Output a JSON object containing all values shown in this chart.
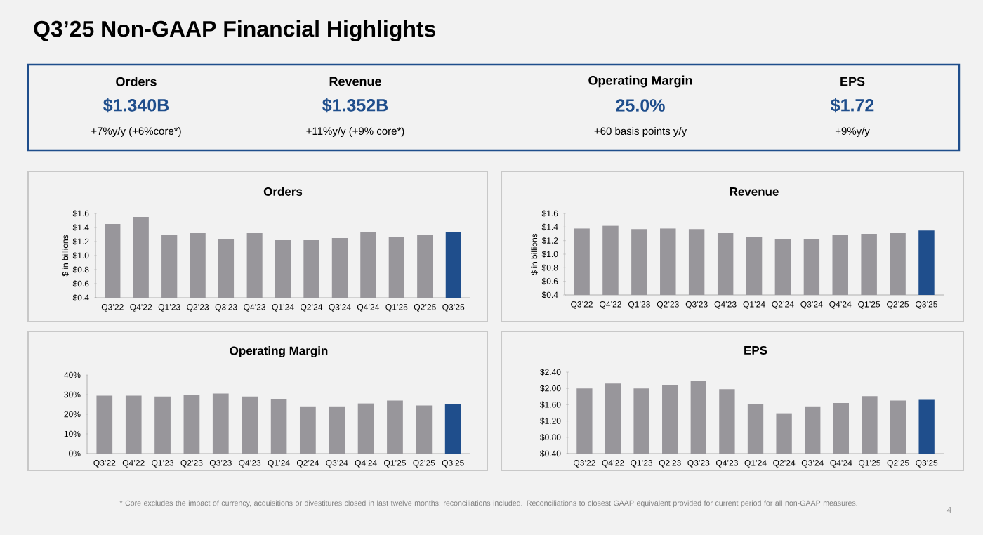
{
  "chart_data": [
    {
      "type": "other",
      "title": "Q3’25 Non-GAAP Financial Highlights",
      "annotations": [
        "Orders",
        "$1.340B",
        "+7%y/y (+6%core*)",
        "Revenue",
        "$1.352B",
        "+11%y/y (+9% core*)",
        "Operating Margin",
        "25.0%",
        "+60 basis points y/y",
        "EPS",
        "$1.72",
        "+9%y/y",
        "* Core excludes the impact of currency, acquisitions or divestitures closed in last twelve months; reconciliations included. Reconciliations to closest GAAP equivalent provided for current period for all non-GAAP measures.",
        "4"
      ]
    },
    {
      "type": "bar",
      "title": "Orders",
      "ylabel": "$ in billions",
      "categories": [
        "Q3’22",
        "Q4’22",
        "Q1’23",
        "Q2’23",
        "Q3’23",
        "Q4’23",
        "Q1’24",
        "Q2’24",
        "Q3’24",
        "Q4’24",
        "Q1’25",
        "Q2’25",
        "Q3’25"
      ],
      "values": [
        1.45,
        1.55,
        1.3,
        1.32,
        1.24,
        1.32,
        1.22,
        1.22,
        1.25,
        1.34,
        1.26,
        1.3,
        1.34
      ],
      "colors": [
        "#98969b",
        "#98969b",
        "#98969b",
        "#98969b",
        "#98969b",
        "#98969b",
        "#98969b",
        "#98969b",
        "#98969b",
        "#98969b",
        "#98969b",
        "#98969b",
        "#1f4e8c"
      ],
      "ylim": [
        0.4,
        1.6
      ],
      "yticks": [
        {
          "value": 0.4,
          "label": "$0.4"
        },
        {
          "value": 0.6,
          "label": "$0.6"
        },
        {
          "value": 0.8,
          "label": "$0.8"
        },
        {
          "value": 1.0,
          "label": "$1.0"
        },
        {
          "value": 1.2,
          "label": "$1.2"
        },
        {
          "value": 1.4,
          "label": "$1.4"
        },
        {
          "value": 1.6,
          "label": "$1.6"
        }
      ]
    },
    {
      "type": "bar",
      "title": "Revenue",
      "ylabel": "$ in billions",
      "categories": [
        "Q3’22",
        "Q4’22",
        "Q1’23",
        "Q2’23",
        "Q3’23",
        "Q4’23",
        "Q1’24",
        "Q2’24",
        "Q3’24",
        "Q4’24",
        "Q1’25",
        "Q2’25",
        "Q3’25"
      ],
      "values": [
        1.38,
        1.42,
        1.37,
        1.38,
        1.37,
        1.31,
        1.25,
        1.22,
        1.22,
        1.29,
        1.3,
        1.31,
        1.35
      ],
      "colors": [
        "#98969b",
        "#98969b",
        "#98969b",
        "#98969b",
        "#98969b",
        "#98969b",
        "#98969b",
        "#98969b",
        "#98969b",
        "#98969b",
        "#98969b",
        "#98969b",
        "#1f4e8c"
      ],
      "ylim": [
        0.4,
        1.6
      ],
      "yticks": [
        {
          "value": 0.4,
          "label": "$0.4"
        },
        {
          "value": 0.6,
          "label": "$0.6"
        },
        {
          "value": 0.8,
          "label": "$0.8"
        },
        {
          "value": 1.0,
          "label": "$1.0"
        },
        {
          "value": 1.2,
          "label": "$1.2"
        },
        {
          "value": 1.4,
          "label": "$1.4"
        },
        {
          "value": 1.6,
          "label": "$1.6"
        }
      ]
    },
    {
      "type": "bar",
      "title": "Operating Margin",
      "categories": [
        "Q3’22",
        "Q4’22",
        "Q1’23",
        "Q2’23",
        "Q3’23",
        "Q4’23",
        "Q1’24",
        "Q2’24",
        "Q3’24",
        "Q4’24",
        "Q1’25",
        "Q2’25",
        "Q3’25"
      ],
      "values": [
        29.5,
        29.5,
        29,
        30,
        30.5,
        29,
        27.5,
        24,
        24,
        25.5,
        27,
        24.5,
        25
      ],
      "colors": [
        "#98969b",
        "#98969b",
        "#98969b",
        "#98969b",
        "#98969b",
        "#98969b",
        "#98969b",
        "#98969b",
        "#98969b",
        "#98969b",
        "#98969b",
        "#98969b",
        "#1f4e8c"
      ],
      "ylim": [
        0,
        40
      ],
      "yticks": [
        {
          "value": 0,
          "label": "0%"
        },
        {
          "value": 10,
          "label": "10%"
        },
        {
          "value": 20,
          "label": "20%"
        },
        {
          "value": 30,
          "label": "30%"
        },
        {
          "value": 40,
          "label": "40%"
        }
      ]
    },
    {
      "type": "bar",
      "title": "EPS",
      "categories": [
        "Q3’22",
        "Q4’22",
        "Q1’23",
        "Q2’23",
        "Q3’23",
        "Q4’23",
        "Q1’24",
        "Q2’24",
        "Q3’24",
        "Q4’24",
        "Q1’25",
        "Q2’25",
        "Q3’25"
      ],
      "values": [
        2.0,
        2.12,
        2.0,
        2.09,
        2.18,
        1.98,
        1.62,
        1.39,
        1.56,
        1.64,
        1.81,
        1.7,
        1.72
      ],
      "colors": [
        "#98969b",
        "#98969b",
        "#98969b",
        "#98969b",
        "#98969b",
        "#98969b",
        "#98969b",
        "#98969b",
        "#98969b",
        "#98969b",
        "#98969b",
        "#98969b",
        "#1f4e8c"
      ],
      "ylim": [
        0.4,
        2.4
      ],
      "yticks": [
        {
          "value": 0.4,
          "label": "$0.40"
        },
        {
          "value": 0.8,
          "label": "$0.80"
        },
        {
          "value": 1.2,
          "label": "$1.20"
        },
        {
          "value": 1.6,
          "label": "$1.60"
        },
        {
          "value": 2.0,
          "label": "$2.00"
        },
        {
          "value": 2.4,
          "label": "$2.40"
        }
      ]
    }
  ]
}
